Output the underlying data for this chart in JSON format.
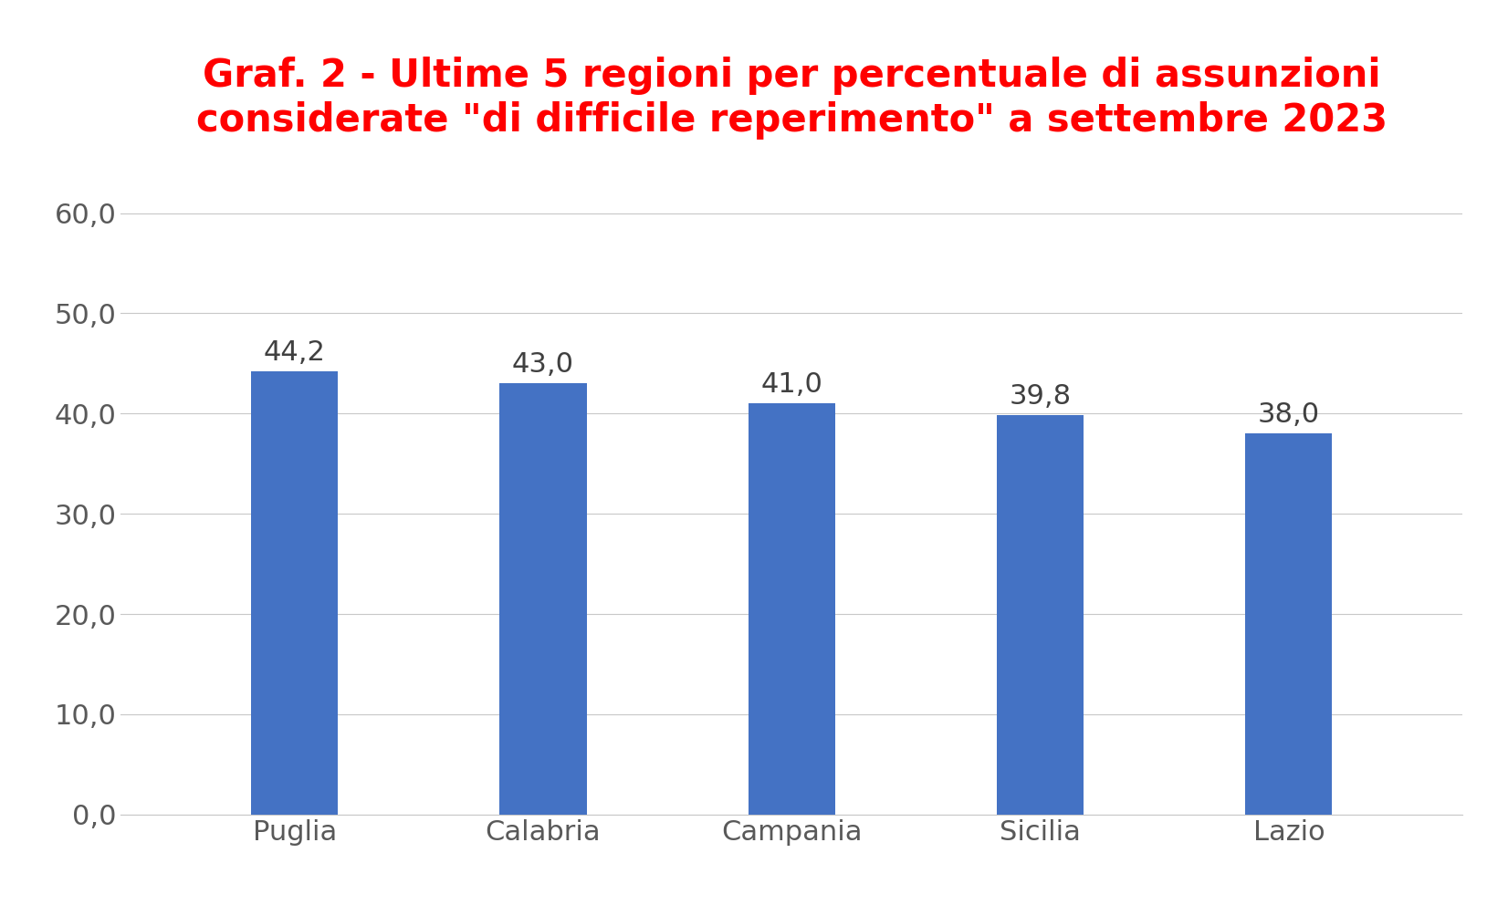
{
  "title_line1": "Graf. 2 - Ultime 5 regioni per percentuale di assunzioni",
  "title_line2": "considerate \"di difficile reperimento\" a settembre 2023",
  "categories": [
    "Puglia",
    "Calabria",
    "Campania",
    "Sicilia",
    "Lazio"
  ],
  "values": [
    44.2,
    43.0,
    41.0,
    39.8,
    38.0
  ],
  "bar_color": "#4472C4",
  "title_color": "#FF0000",
  "label_color": "#404040",
  "tick_color": "#595959",
  "background_color": "#FFFFFF",
  "grid_color": "#C8C8C8",
  "ylim": [
    0,
    65
  ],
  "yticks": [
    0,
    10,
    20,
    30,
    40,
    50,
    60
  ],
  "ytick_labels": [
    "0,0",
    "10,0",
    "20,0",
    "30,0",
    "40,0",
    "50,0",
    "60,0"
  ],
  "title_fontsize": 30,
  "tick_fontsize": 22,
  "xtick_fontsize": 22,
  "value_fontsize": 22,
  "bar_width": 0.35
}
